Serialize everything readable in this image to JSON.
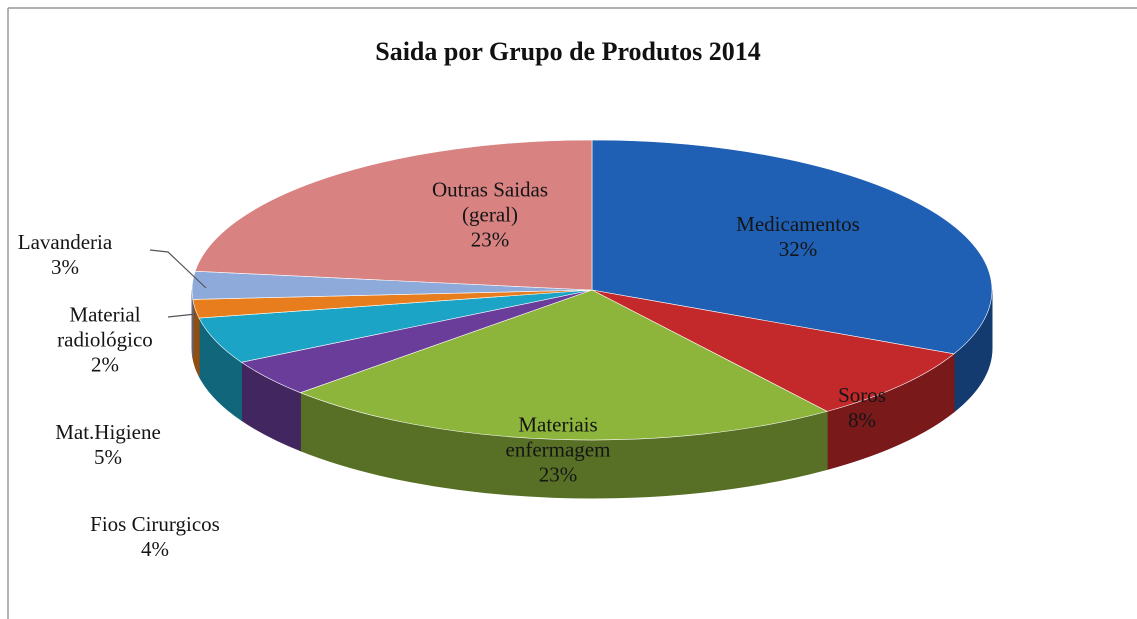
{
  "chart_data": {
    "type": "pie",
    "title": "Saida por Grupo de Produtos  2014",
    "categories": [
      "Medicamentos",
      "Soros",
      "Materiais enfermagem",
      "Fios Cirurgicos",
      "Mat.Higiene",
      "Material radiológico",
      "Lavanderia",
      "Outras Saidas (geral)"
    ],
    "values": [
      32,
      8,
      23,
      4,
      5,
      2,
      3,
      23
    ],
    "value_labels": [
      "32%",
      "8%",
      "23%",
      "4%",
      "5%",
      "2%",
      "3%",
      "23%"
    ],
    "colors": [
      "#1f5fb4",
      "#c3282a",
      "#8db53c",
      "#6a3d9a",
      "#1ba4c6",
      "#e87d1e",
      "#8eaadb",
      "#d88282"
    ]
  }
}
